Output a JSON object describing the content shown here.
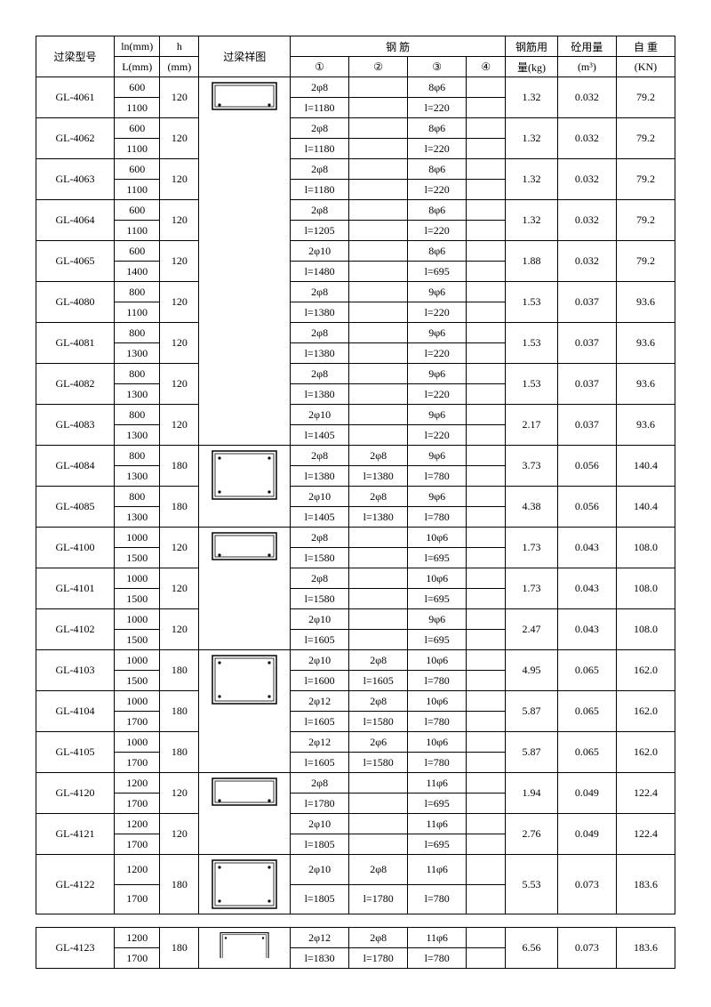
{
  "header": {
    "model": "过梁型号",
    "ln": "ln(mm)",
    "L": "L(mm)",
    "h": "h",
    "h_unit": "(mm)",
    "diagram": "过梁祥图",
    "rebar": "钢      筋",
    "c1": "①",
    "c2": "②",
    "c3": "③",
    "c4": "④",
    "rebar_usage": "钢筋用",
    "rebar_usage2": "量(kg)",
    "concrete": "砼用量",
    "concrete_unit": "(m³)",
    "weight": "自  重",
    "weight_unit": "(KN)"
  },
  "rows": [
    {
      "model": "GL-4061",
      "ln": "600",
      "L": "1100",
      "h": "120",
      "r1a": "2φ8",
      "r1b": "l=1180",
      "r2a": "",
      "r2b": "",
      "r3a": "8φ6",
      "r3b": "l=220",
      "r4a": "",
      "r4b": "",
      "kg": "1.32",
      "m3": "0.032",
      "kn": "79.2"
    },
    {
      "model": "GL-4062",
      "ln": "600",
      "L": "1100",
      "h": "120",
      "r1a": "2φ8",
      "r1b": "l=1180",
      "r2a": "",
      "r2b": "",
      "r3a": "8φ6",
      "r3b": "l=220",
      "r4a": "",
      "r4b": "",
      "kg": "1.32",
      "m3": "0.032",
      "kn": "79.2"
    },
    {
      "model": "GL-4063",
      "ln": "600",
      "L": "1100",
      "h": "120",
      "r1a": "2φ8",
      "r1b": "l=1180",
      "r2a": "",
      "r2b": "",
      "r3a": "8φ6",
      "r3b": "l=220",
      "r4a": "",
      "r4b": "",
      "kg": "1.32",
      "m3": "0.032",
      "kn": "79.2"
    },
    {
      "model": "GL-4064",
      "ln": "600",
      "L": "1100",
      "h": "120",
      "r1a": "2φ8",
      "r1b": "l=1205",
      "r2a": "",
      "r2b": "",
      "r3a": "8φ6",
      "r3b": "l=220",
      "r4a": "",
      "r4b": "",
      "kg": "1.32",
      "m3": "0.032",
      "kn": "79.2"
    },
    {
      "model": "GL-4065",
      "ln": "600",
      "L": "1400",
      "h": "120",
      "r1a": "2φ10",
      "r1b": "l=1480",
      "r2a": "",
      "r2b": "",
      "r3a": "8φ6",
      "r3b": "l=695",
      "r4a": "",
      "r4b": "",
      "kg": "1.88",
      "m3": "0.032",
      "kn": "79.2"
    },
    {
      "model": "GL-4080",
      "ln": "800",
      "L": "1100",
      "h": "120",
      "r1a": "2φ8",
      "r1b": "l=1380",
      "r2a": "",
      "r2b": "",
      "r3a": "9φ6",
      "r3b": "l=220",
      "r4a": "",
      "r4b": "",
      "kg": "1.53",
      "m3": "0.037",
      "kn": "93.6"
    },
    {
      "model": "GL-4081",
      "ln": "800",
      "L": "1300",
      "h": "120",
      "r1a": "2φ8",
      "r1b": "l=1380",
      "r2a": "",
      "r2b": "",
      "r3a": "9φ6",
      "r3b": "l=220",
      "r4a": "",
      "r4b": "",
      "kg": "1.53",
      "m3": "0.037",
      "kn": "93.6"
    },
    {
      "model": "GL-4082",
      "ln": "800",
      "L": "1300",
      "h": "120",
      "r1a": "2φ8",
      "r1b": "l=1380",
      "r2a": "",
      "r2b": "",
      "r3a": "9φ6",
      "r3b": "l=220",
      "r4a": "",
      "r4b": "",
      "kg": "1.53",
      "m3": "0.037",
      "kn": "93.6"
    },
    {
      "model": "GL-4083",
      "ln": "800",
      "L": "1300",
      "h": "120",
      "r1a": "2φ10",
      "r1b": "l=1405",
      "r2a": "",
      "r2b": "",
      "r3a": "9φ6",
      "r3b": "l=220",
      "r4a": "",
      "r4b": "",
      "kg": "2.17",
      "m3": "0.037",
      "kn": "93.6"
    },
    {
      "model": "GL-4084",
      "ln": "800",
      "L": "1300",
      "h": "180",
      "r1a": "2φ8",
      "r1b": "l=1380",
      "r2a": "2φ8",
      "r2b": "l=1380",
      "r3a": "9φ6",
      "r3b": "l=780",
      "r4a": "",
      "r4b": "",
      "kg": "3.73",
      "m3": "0.056",
      "kn": "140.4"
    },
    {
      "model": "GL-4085",
      "ln": "800",
      "L": "1300",
      "h": "180",
      "r1a": "2φ10",
      "r1b": "l=1405",
      "r2a": "2φ8",
      "r2b": "l=1380",
      "r3a": "9φ6",
      "r3b": "l=780",
      "r4a": "",
      "r4b": "",
      "kg": "4.38",
      "m3": "0.056",
      "kn": "140.4"
    },
    {
      "model": "GL-4100",
      "ln": "1000",
      "L": "1500",
      "h": "120",
      "r1a": "2φ8",
      "r1b": "l=1580",
      "r2a": "",
      "r2b": "",
      "r3a": "10φ6",
      "r3b": "l=695",
      "r4a": "",
      "r4b": "",
      "kg": "1.73",
      "m3": "0.043",
      "kn": "108.0"
    },
    {
      "model": "GL-4101",
      "ln": "1000",
      "L": "1500",
      "h": "120",
      "r1a": "2φ8",
      "r1b": "l=1580",
      "r2a": "",
      "r2b": "",
      "r3a": "10φ6",
      "r3b": "l=695",
      "r4a": "",
      "r4b": "",
      "kg": "1.73",
      "m3": "0.043",
      "kn": "108.0"
    },
    {
      "model": "GL-4102",
      "ln": "1000",
      "L": "1500",
      "h": "120",
      "r1a": "2φ10",
      "r1b": "l=1605",
      "r2a": "",
      "r2b": "",
      "r3a": "9φ6",
      "r3b": "l=695",
      "r4a": "",
      "r4b": "",
      "kg": "2.47",
      "m3": "0.043",
      "kn": "108.0"
    },
    {
      "model": "GL-4103",
      "ln": "1000",
      "L": "1500",
      "h": "180",
      "r1a": "2φ10",
      "r1b": "l=1600",
      "r2a": "2φ8",
      "r2b": "l=1605",
      "r3a": "10φ6",
      "r3b": "l=780",
      "r4a": "",
      "r4b": "",
      "kg": "4.95",
      "m3": "0.065",
      "kn": "162.0"
    },
    {
      "model": "GL-4104",
      "ln": "1000",
      "L": "1700",
      "h": "180",
      "r1a": "2φ12",
      "r1b": "l=1605",
      "r2a": "2φ8",
      "r2b": "l=1580",
      "r3a": "10φ6",
      "r3b": "l=780",
      "r4a": "",
      "r4b": "",
      "kg": "5.87",
      "m3": "0.065",
      "kn": "162.0"
    },
    {
      "model": "GL-4105",
      "ln": "1000",
      "L": "1700",
      "h": "180",
      "r1a": "2φ12",
      "r1b": "l=1605",
      "r2a": "2φ6",
      "r2b": "l=1580",
      "r3a": "10φ6",
      "r3b": "l=780",
      "r4a": "",
      "r4b": "",
      "kg": "5.87",
      "m3": "0.065",
      "kn": "162.0"
    },
    {
      "model": "GL-4120",
      "ln": "1200",
      "L": "1700",
      "h": "120",
      "r1a": "2φ8",
      "r1b": "l=1780",
      "r2a": "",
      "r2b": "",
      "r3a": "11φ6",
      "r3b": "l=695",
      "r4a": "",
      "r4b": "",
      "kg": "1.94",
      "m3": "0.049",
      "kn": "122.4"
    },
    {
      "model": "GL-4121",
      "ln": "1200",
      "L": "1700",
      "h": "120",
      "r1a": "2φ10",
      "r1b": "l=1805",
      "r2a": "",
      "r2b": "",
      "r3a": "11φ6",
      "r3b": "l=695",
      "r4a": "",
      "r4b": "",
      "kg": "2.76",
      "m3": "0.049",
      "kn": "122.4"
    },
    {
      "model": "GL-4122",
      "ln": "1200",
      "L": "1700",
      "h": "180",
      "r1a": "2φ10",
      "r1b": "l=1805",
      "r2a": "2φ8",
      "r2b": "l=1780",
      "r3a": "11φ6",
      "r3b": "l=780",
      "r4a": "",
      "r4b": "",
      "kg": "5.53",
      "m3": "0.073",
      "kn": "183.6"
    }
  ],
  "extra": {
    "model": "GL-4123",
    "ln": "1200",
    "L": "1700",
    "h": "180",
    "r1a": "2φ12",
    "r1b": "l=1830",
    "r2a": "2φ8",
    "r2b": "l=1780",
    "r3a": "11φ6",
    "r3b": "l=780",
    "r4a": "",
    "r4b": "",
    "kg": "6.56",
    "m3": "0.073",
    "kn": "183.6"
  },
  "diagrams": [
    {
      "type": "short",
      "span": 18
    },
    {
      "type": "tall",
      "span": 4
    },
    {
      "type": "short",
      "span": 6
    },
    {
      "type": "tall",
      "span": 6
    },
    {
      "type": "short",
      "span": 4
    },
    {
      "type": "tall",
      "span": 2
    }
  ],
  "colwidths": {
    "model": "12%",
    "ln": "7%",
    "h": "6%",
    "diag": "14%",
    "r1": "9%",
    "r2": "9%",
    "r3": "9%",
    "r4": "6%",
    "kg": "8%",
    "m3": "9%",
    "kn": "9%"
  }
}
